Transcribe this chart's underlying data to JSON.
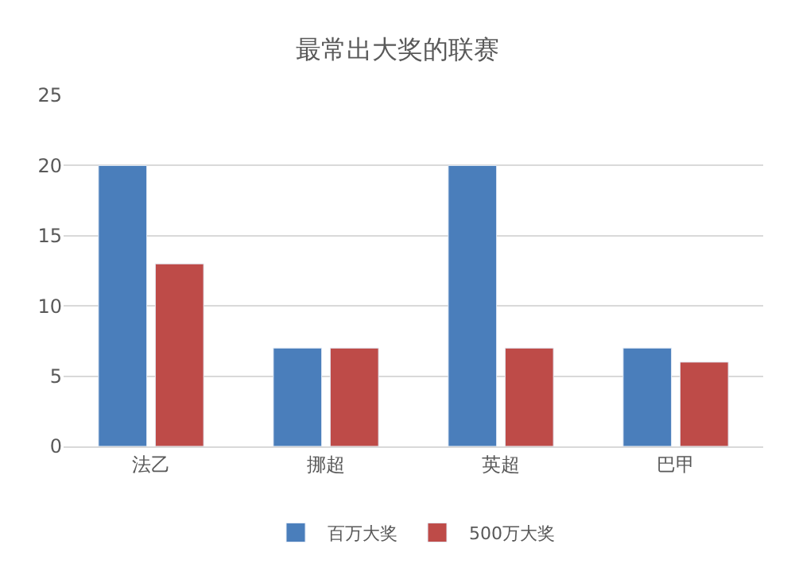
{
  "chart_data": {
    "type": "bar",
    "title": "最常出大奖的联赛",
    "categories": [
      "法乙",
      "挪超",
      "英超",
      "巴甲"
    ],
    "series": [
      {
        "name": "百万大奖",
        "color": "#4a7ebb",
        "values": [
          20,
          7,
          20,
          7
        ]
      },
      {
        "name": "500万大奖",
        "color": "#be4b48",
        "values": [
          13,
          7,
          7,
          6
        ]
      }
    ],
    "ylim": [
      0,
      25
    ],
    "yticks": [
      0,
      5,
      10,
      15,
      20,
      25
    ],
    "grid": "y",
    "legend": "bottom"
  }
}
